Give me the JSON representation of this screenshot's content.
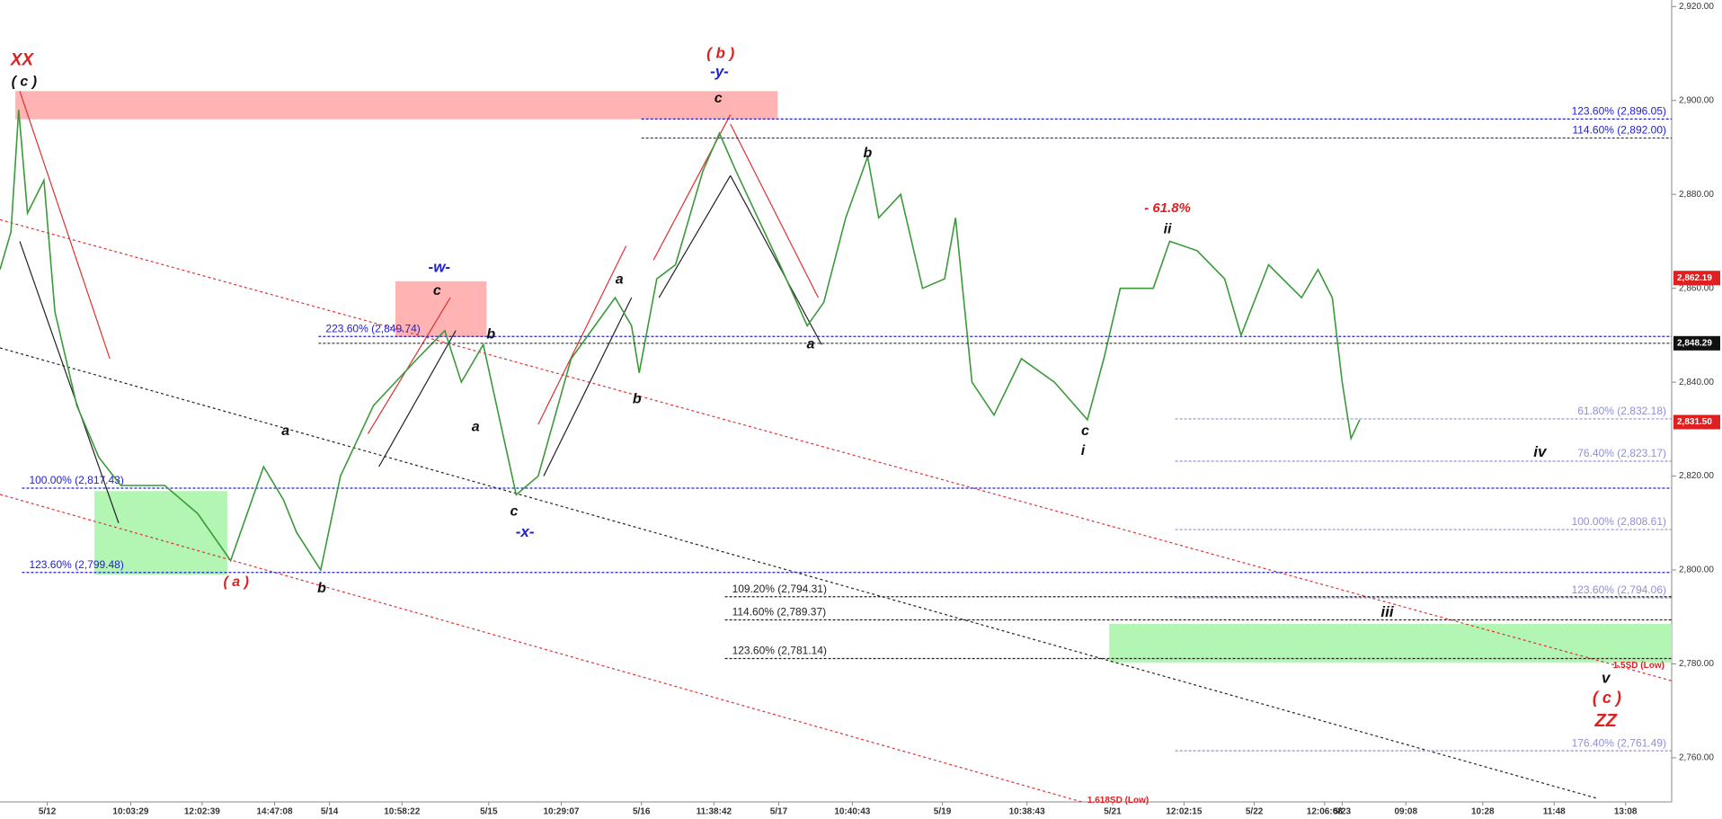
{
  "chart_data": {
    "type": "line",
    "xlim": [
      0,
      152.2
    ],
    "ylim": [
      2750.6,
      2921.4
    ],
    "yticks": [
      {
        "value": 2760,
        "label": "2,760.00"
      },
      {
        "value": 2780,
        "label": "2,780.00"
      },
      {
        "value": 2800,
        "label": "2,800.00"
      },
      {
        "value": 2820,
        "label": "2,820.00"
      },
      {
        "value": 2840,
        "label": "2,840.00"
      },
      {
        "value": 2860,
        "label": "2,860.00"
      },
      {
        "value": 2880,
        "label": "2,880.00"
      },
      {
        "value": 2900,
        "label": "2,900.00"
      },
      {
        "value": 2920,
        "label": "2,920.00"
      }
    ],
    "xticks": [
      {
        "value": 4.3,
        "label": "5/12"
      },
      {
        "value": 11.9,
        "label": "10:03:29"
      },
      {
        "value": 18.4,
        "label": "12:02:39"
      },
      {
        "value": 25,
        "label": "14:47:08"
      },
      {
        "value": 30,
        "label": "5/14"
      },
      {
        "value": 36.6,
        "label": "10:58:22"
      },
      {
        "value": 44.5,
        "label": "5/15"
      },
      {
        "value": 51.1,
        "label": "10:29:07"
      },
      {
        "value": 58.4,
        "label": "5/16"
      },
      {
        "value": 65,
        "label": "11:38:42"
      },
      {
        "value": 70.9,
        "label": "5/17"
      },
      {
        "value": 77.6,
        "label": "10:40:43"
      },
      {
        "value": 85.8,
        "label": "5/19"
      },
      {
        "value": 93.5,
        "label": "10:38:43"
      },
      {
        "value": 101.3,
        "label": "5/21"
      },
      {
        "value": 107.8,
        "label": "12:02:15"
      },
      {
        "value": 114.2,
        "label": "5/22"
      },
      {
        "value": 120.6,
        "label": "12:06:08"
      },
      {
        "value": 122.2,
        "label": "5/23"
      },
      {
        "value": 128,
        "label": "09:08"
      },
      {
        "value": 135,
        "label": "10:28"
      },
      {
        "value": 141.5,
        "label": "11:48"
      },
      {
        "value": 148,
        "label": "13:08"
      }
    ],
    "series": [
      {
        "color": "#3a9a3a",
        "x": [
          0,
          1,
          1.7,
          2.5,
          4,
          5,
          7,
          9,
          11,
          15,
          18,
          21,
          24,
          25.8,
          27,
          29.2,
          31,
          34,
          38,
          40.5,
          42,
          44,
          45.5,
          47,
          49,
          52,
          56,
          57.5,
          58.2,
          59.8,
          61.5,
          64,
          65.5,
          67,
          69,
          71,
          73.5,
          75,
          77,
          79,
          80,
          82,
          84,
          86,
          87,
          88.5,
          90.5,
          93,
          96,
          99,
          100.5,
          102,
          105,
          106.5,
          109,
          111.5,
          113,
          115.5,
          118.5,
          120,
          121.3,
          122.2,
          123,
          123.8
        ],
        "values": [
          2864,
          2872,
          2898,
          2876,
          2883,
          2855,
          2835,
          2824,
          2818,
          2818,
          2812,
          2802,
          2822,
          2815,
          2808,
          2800,
          2820,
          2835,
          2845,
          2851,
          2840,
          2848,
          2832,
          2816,
          2820,
          2845,
          2858,
          2852,
          2842,
          2862,
          2865,
          2885,
          2893,
          2885,
          2875,
          2865,
          2852,
          2857,
          2875,
          2888,
          2875,
          2880,
          2860,
          2862,
          2875,
          2840,
          2833,
          2845,
          2840,
          2832,
          2845,
          2860,
          2860,
          2870,
          2868,
          2862,
          2850,
          2865,
          2858,
          2864,
          2858,
          2840,
          2828,
          2832
        ]
      }
    ],
    "zones": [
      {
        "x": [
          1.4,
          70.8
        ],
        "y": [
          2896,
          2902
        ],
        "color": "#ffb3b3"
      },
      {
        "x": [
          36,
          44.3
        ],
        "y": [
          2849.6,
          2861.5
        ],
        "color": "#ffb3b3"
      },
      {
        "x": [
          8.6,
          20.7
        ],
        "y": [
          2799,
          2816.8
        ],
        "color": "#b3f5b3"
      },
      {
        "x": [
          101,
          152.2
        ],
        "y": [
          2780.3,
          2788.5
        ],
        "color": "#b3f5b3"
      }
    ],
    "trendlines": [
      {
        "x": [
          0,
          152.2
        ],
        "y": [
          2874.6,
          2776.4
        ],
        "color": "#e03030",
        "dash": true
      },
      {
        "x": [
          0,
          98.5
        ],
        "y": [
          2816.1,
          2750.6
        ],
        "color": "#e03030",
        "dash": true
      },
      {
        "x": [
          0,
          145.5
        ],
        "y": [
          2847.3,
          2751.3
        ],
        "color": "#222222",
        "dash": true
      },
      {
        "x": [
          1.8,
          10
        ],
        "y": [
          2902,
          2845
        ],
        "color": "#e03030",
        "dash": false
      },
      {
        "x": [
          1.8,
          10.8
        ],
        "y": [
          2870,
          2810
        ],
        "color": "#222222",
        "dash": false
      },
      {
        "x": [
          33.5,
          41
        ],
        "y": [
          2829,
          2858
        ],
        "color": "#e03030",
        "dash": false
      },
      {
        "x": [
          34.5,
          41.5
        ],
        "y": [
          2822,
          2851
        ],
        "color": "#222222",
        "dash": false
      },
      {
        "x": [
          49,
          57
        ],
        "y": [
          2831,
          2869
        ],
        "color": "#e03030",
        "dash": false
      },
      {
        "x": [
          49.5,
          57.5
        ],
        "y": [
          2820,
          2858
        ],
        "color": "#222222",
        "dash": false
      },
      {
        "x": [
          59.5,
          66.5
        ],
        "y": [
          2866,
          2897
        ],
        "color": "#e03030",
        "dash": false
      },
      {
        "x": [
          60,
          66.5
        ],
        "y": [
          2858,
          2884
        ],
        "color": "#222222",
        "dash": false
      },
      {
        "x": [
          66.5,
          74.5
        ],
        "y": [
          2895,
          2858
        ],
        "color": "#e03030",
        "dash": false
      },
      {
        "x": [
          66.5,
          74.8
        ],
        "y": [
          2884,
          2848
        ],
        "color": "#222222",
        "dash": false
      }
    ],
    "levels": [
      {
        "label": "123.60% (2,896.05)",
        "value": 2896.05,
        "x0": 58.4,
        "color": "#2222cc",
        "side": "right"
      },
      {
        "label": "114.60% (2,892.00)",
        "value": 2892.0,
        "x0": 58.4,
        "color": "#2222cc",
        "side": "right"
      },
      {
        "label": "223.60% (2,849.74)",
        "value": 2849.74,
        "x0": 29,
        "color": "#2222cc",
        "side": "left"
      },
      {
        "label": "100.00% (2,817.43)",
        "value": 2817.43,
        "x0": 2,
        "color": "#2222cc",
        "side": "left"
      },
      {
        "label": "123.60% (2,799.48)",
        "value": 2799.48,
        "x0": 2,
        "color": "#2222cc",
        "side": "left"
      },
      {
        "label": "61.80% (2,832.18)",
        "value": 2832.18,
        "x0": 107,
        "color": "#8f8fd6",
        "side": "right"
      },
      {
        "label": "76.40% (2,823.17)",
        "value": 2823.17,
        "x0": 107,
        "color": "#8f8fd6",
        "side": "right"
      },
      {
        "label": "100.00% (2,808.61)",
        "value": 2808.61,
        "x0": 107,
        "color": "#8f8fd6",
        "side": "right"
      },
      {
        "label": "123.60% (2,794.06)",
        "value": 2794.06,
        "x0": 107,
        "color": "#8f8fd6",
        "side": "right"
      },
      {
        "label": "176.40% (2,761.49)",
        "value": 2761.49,
        "x0": 107,
        "color": "#8f8fd6",
        "side": "right"
      },
      {
        "label": "109.20% (2,794.31)",
        "value": 2794.31,
        "x0": 66,
        "color": "#222222",
        "side": "left"
      },
      {
        "label": "114.60% (2,789.37)",
        "value": 2789.37,
        "x0": 66,
        "color": "#222222",
        "side": "left"
      },
      {
        "label": "123.60% (2,781.14)",
        "value": 2781.14,
        "x0": 66,
        "color": "#222222",
        "side": "left"
      }
    ],
    "price_labels": [
      {
        "label": "2,862.19",
        "value": 2862.19,
        "color": "#e02020"
      },
      {
        "label": "2,848.29",
        "value": 2848.29,
        "color": "#111111",
        "x0": 29
      },
      {
        "label": "2,831.50",
        "value": 2831.5,
        "color": "#e02020"
      }
    ],
    "annotations": [
      {
        "text": "XX",
        "x": 2,
        "y": 2908.5,
        "color": "#e02020",
        "size": 19
      },
      {
        "text": "( c )",
        "x": 2.2,
        "y": 2903.9,
        "color": "#111111",
        "size": 16
      },
      {
        "text": "( a )",
        "x": 21.5,
        "y": 2797.4,
        "color": "#e02020",
        "size": 16
      },
      {
        "text": "b",
        "x": 29.3,
        "y": 2796.0,
        "color": "#111111",
        "size": 16
      },
      {
        "text": "a",
        "x": 26,
        "y": 2829.5,
        "color": "#111111",
        "size": 16
      },
      {
        "text": "-w-",
        "x": 40,
        "y": 2864.3,
        "color": "#2222cc",
        "size": 17
      },
      {
        "text": "c",
        "x": 39.8,
        "y": 2859.4,
        "color": "#111111",
        "size": 16
      },
      {
        "text": "b",
        "x": 44.7,
        "y": 2850.1,
        "color": "#111111",
        "size": 16
      },
      {
        "text": "a",
        "x": 43.3,
        "y": 2830.4,
        "color": "#111111",
        "size": 16
      },
      {
        "text": "c",
        "x": 46.8,
        "y": 2812.4,
        "color": "#111111",
        "size": 16
      },
      {
        "text": "-x-",
        "x": 47.8,
        "y": 2807.9,
        "color": "#2222cc",
        "size": 17
      },
      {
        "text": "a",
        "x": 56.4,
        "y": 2861.8,
        "color": "#111111",
        "size": 16
      },
      {
        "text": "b",
        "x": 58,
        "y": 2836.3,
        "color": "#111111",
        "size": 16
      },
      {
        "text": "( b )",
        "x": 65.6,
        "y": 2909.9,
        "color": "#e02020",
        "size": 17
      },
      {
        "text": "-y-",
        "x": 65.5,
        "y": 2906.0,
        "color": "#2222cc",
        "size": 17
      },
      {
        "text": "c",
        "x": 65.4,
        "y": 2900.4,
        "color": "#111111",
        "size": 16
      },
      {
        "text": "b",
        "x": 79,
        "y": 2888.7,
        "color": "#111111",
        "size": 16
      },
      {
        "text": "a",
        "x": 73.8,
        "y": 2848.0,
        "color": "#111111",
        "size": 16
      },
      {
        "text": "- 61.8%",
        "x": 106.3,
        "y": 2877.0,
        "color": "#e02020",
        "size": 15
      },
      {
        "text": "ii",
        "x": 106.3,
        "y": 2872.5,
        "color": "#111111",
        "size": 16
      },
      {
        "text": "c",
        "x": 98.8,
        "y": 2829.5,
        "color": "#111111",
        "size": 16
      },
      {
        "text": "i",
        "x": 98.6,
        "y": 2825.3,
        "color": "#111111",
        "size": 16
      },
      {
        "text": "iv",
        "x": 140.2,
        "y": 2825.0,
        "color": "#111111",
        "size": 17
      },
      {
        "text": "iii",
        "x": 126.3,
        "y": 2790.9,
        "color": "#111111",
        "size": 17
      },
      {
        "text": "v",
        "x": 146.2,
        "y": 2776.8,
        "color": "#111111",
        "size": 17
      },
      {
        "text": "( c )",
        "x": 146.3,
        "y": 2772.6,
        "color": "#e02020",
        "size": 18
      },
      {
        "text": "ZZ",
        "x": 146.2,
        "y": 2767.7,
        "color": "#e02020",
        "size": 20
      },
      {
        "text": "1.618SD (Low)",
        "x": 101.8,
        "y": 2750.9,
        "color": "#e02020",
        "size": 10
      },
      {
        "text": "1.5SD (Low)",
        "x": 149.2,
        "y": 2779.6,
        "color": "#e02020",
        "size": 10
      }
    ]
  }
}
